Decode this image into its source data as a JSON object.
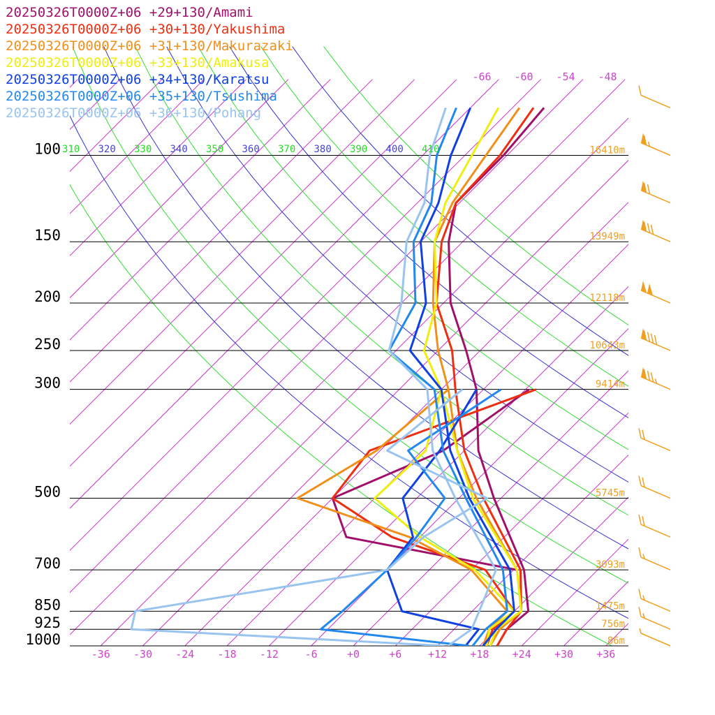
{
  "chart_data": {
    "type": "line",
    "chart_kind": "Skew-T log-P sounding diagram",
    "title": "",
    "legend_placement": "top-left",
    "grid": true,
    "x_axis": {
      "unit": "degC",
      "range": [
        -40,
        40
      ],
      "tick_labels": [
        "-36",
        "-30",
        "-24",
        "-18",
        "-12",
        "-6",
        "+0",
        "+6",
        "+12",
        "+18",
        "+24",
        "+30",
        "+36"
      ],
      "tick_values": [
        -36,
        -30,
        -24,
        -18,
        -12,
        -6,
        0,
        6,
        12,
        18,
        24,
        30,
        36
      ]
    },
    "y_axis": {
      "unit": "hPa",
      "scale": "log",
      "range": [
        1000,
        100
      ],
      "levels": [
        100,
        150,
        200,
        250,
        300,
        500,
        700,
        850,
        925,
        1000
      ],
      "level_labels": [
        "100",
        "150",
        "200",
        "250",
        "300",
        "500",
        "700",
        "850",
        "925",
        "1000"
      ]
    },
    "upper_temperature_labels": [
      "-66",
      "-60",
      "-54",
      "-48"
    ],
    "upper_temperature_values": [
      -66,
      -60,
      -54,
      -48
    ],
    "theta_labels": [
      "310",
      "320",
      "330",
      "340",
      "350",
      "360",
      "370",
      "380",
      "390",
      "400",
      "410"
    ],
    "theta_values": [
      310,
      320,
      330,
      340,
      350,
      360,
      370,
      380,
      390,
      400,
      410
    ],
    "theta_label_colors": [
      "#22dd22",
      "#4444dd",
      "#22dd22",
      "#4444dd",
      "#22dd22",
      "#4444dd",
      "#22dd22",
      "#4444dd",
      "#22dd22",
      "#4444dd",
      "#22dd22"
    ],
    "height_labels": [
      {
        "p": 100,
        "text": "16410m"
      },
      {
        "p": 150,
        "text": "13949m"
      },
      {
        "p": 200,
        "text": "12118m"
      },
      {
        "p": 250,
        "text": "10643m"
      },
      {
        "p": 300,
        "text": "9414m"
      },
      {
        "p": 500,
        "text": "5745m"
      },
      {
        "p": 700,
        "text": "3093m"
      },
      {
        "p": 850,
        "text": "1475m"
      },
      {
        "p": 925,
        "text": "756m"
      },
      {
        "p": 1000,
        "text": "86m"
      }
    ],
    "colors": {
      "isobar": "#000000",
      "isotherm": "#cc33cc",
      "theta_green": "#33dd33",
      "theta_blue": "#3333cc",
      "height_label": "#f0a020",
      "temp_label": "#cc44cc",
      "wind_barb": "#f0a020"
    },
    "series": [
      {
        "name": "20250326T0000Z+06 +29+130/Amami",
        "color": "#a0106a",
        "temperature": [
          [
            1000,
            20.5
          ],
          [
            925,
            19.5
          ],
          [
            850,
            20.0
          ],
          [
            700,
            13.5
          ],
          [
            500,
            -1.0
          ],
          [
            400,
            -10.0
          ],
          [
            300,
            -19.0
          ],
          [
            250,
            -26.0
          ],
          [
            200,
            -35.0
          ],
          [
            150,
            -44.0
          ],
          [
            125,
            -48.5
          ],
          [
            100,
            -48.5
          ],
          [
            80,
            -49.5
          ]
        ],
        "dewpoint": [
          [
            700,
            12.5
          ],
          [
            600,
            -16.5
          ],
          [
            500,
            -24.0
          ],
          [
            400,
            -15.0
          ],
          [
            300,
            -11.5
          ]
        ]
      },
      {
        "name": "20250326T0000Z+06 +30+130/Yakushima",
        "color": "#ee2e10",
        "temperature": [
          [
            1000,
            20.5
          ],
          [
            925,
            19.5
          ],
          [
            850,
            19.0
          ],
          [
            700,
            13.0
          ],
          [
            500,
            -2.5
          ],
          [
            400,
            -12.0
          ],
          [
            300,
            -22.0
          ],
          [
            250,
            -28.0
          ],
          [
            200,
            -37.0
          ],
          [
            150,
            -45.0
          ],
          [
            125,
            -48.5
          ],
          [
            100,
            -49.0
          ],
          [
            80,
            -51.0
          ]
        ],
        "dewpoint": [
          [
            1000,
            19.0
          ],
          [
            925,
            17.5
          ],
          [
            850,
            18.0
          ],
          [
            700,
            8.0
          ],
          [
            600,
            -10.0
          ],
          [
            500,
            -24.0
          ],
          [
            400,
            -25.5
          ],
          [
            300,
            -10.5
          ]
        ]
      },
      {
        "name": "20250326T0000Z+06 +31+130/Makurazaki",
        "color": "#f0901a",
        "temperature": [
          [
            1000,
            19.5
          ],
          [
            925,
            18.5
          ],
          [
            850,
            19.0
          ],
          [
            700,
            12.5
          ],
          [
            500,
            -3.5
          ],
          [
            400,
            -13.0
          ],
          [
            300,
            -23.0
          ],
          [
            250,
            -30.0
          ],
          [
            200,
            -37.5
          ],
          [
            150,
            -46.0
          ],
          [
            125,
            -49.0
          ],
          [
            100,
            -51.0
          ],
          [
            80,
            -53.0
          ]
        ],
        "dewpoint": [
          [
            1000,
            18.5
          ],
          [
            925,
            17.0
          ],
          [
            850,
            17.0
          ],
          [
            700,
            6.0
          ],
          [
            600,
            -7.5
          ],
          [
            500,
            -29.0
          ],
          [
            400,
            -24.5
          ],
          [
            300,
            -23.0
          ]
        ]
      },
      {
        "name": "20250326T0000Z+06 +33+130/Amakusa",
        "color": "#eeee10",
        "temperature": [
          [
            1000,
            19.5
          ],
          [
            925,
            18.0
          ],
          [
            850,
            19.0
          ],
          [
            700,
            12.5
          ],
          [
            500,
            -4.0
          ],
          [
            400,
            -13.0
          ],
          [
            300,
            -24.0
          ],
          [
            250,
            -32.0
          ],
          [
            200,
            -37.0
          ],
          [
            150,
            -46.0
          ],
          [
            125,
            -50.0
          ],
          [
            100,
            -53.0
          ],
          [
            80,
            -56.0
          ]
        ],
        "dewpoint": [
          [
            1000,
            19.0
          ],
          [
            925,
            17.0
          ],
          [
            850,
            18.0
          ],
          [
            700,
            6.5
          ],
          [
            600,
            -6.0
          ],
          [
            500,
            -18.0
          ],
          [
            400,
            -17.5
          ],
          [
            300,
            -24.0
          ]
        ]
      },
      {
        "name": "20250326T0000Z+06 +34+130/Karatsu",
        "color": "#1040e0",
        "temperature": [
          [
            1000,
            18.5
          ],
          [
            925,
            18.0
          ],
          [
            850,
            18.0
          ],
          [
            700,
            11.5
          ],
          [
            500,
            -4.5
          ],
          [
            400,
            -14.0
          ],
          [
            300,
            -24.0
          ],
          [
            250,
            -34.0
          ],
          [
            200,
            -38.5
          ],
          [
            150,
            -48.0
          ],
          [
            125,
            -51.0
          ],
          [
            100,
            -56.0
          ],
          [
            80,
            -60.0
          ]
        ],
        "dewpoint": [
          [
            1000,
            16.0
          ],
          [
            925,
            15.5
          ],
          [
            850,
            2.0
          ],
          [
            700,
            -6.0
          ],
          [
            600,
            -7.0
          ],
          [
            500,
            -14.0
          ],
          [
            400,
            -15.5
          ],
          [
            300,
            -19.0
          ]
        ]
      },
      {
        "name": "20250326T0000Z+06 +35+130/Tsushima",
        "color": "#2288ee",
        "temperature": [
          [
            1000,
            17.0
          ],
          [
            925,
            16.5
          ],
          [
            850,
            17.0
          ],
          [
            700,
            10.5
          ],
          [
            500,
            -5.0
          ],
          [
            400,
            -15.0
          ],
          [
            300,
            -25.0
          ],
          [
            250,
            -37.0
          ],
          [
            200,
            -40.0
          ],
          [
            150,
            -49.0
          ],
          [
            125,
            -52.0
          ],
          [
            100,
            -58.0
          ],
          [
            80,
            -62.0
          ]
        ],
        "dewpoint": [
          [
            1000,
            16.5
          ],
          [
            925,
            -7.0
          ],
          [
            850,
            -6.5
          ],
          [
            700,
            -6.0
          ],
          [
            600,
            -6.5
          ],
          [
            500,
            -8.0
          ],
          [
            400,
            -20.0
          ],
          [
            300,
            -15.5
          ]
        ]
      },
      {
        "name": "20250326T0000Z+06 +36+130/Pohang",
        "color": "#99c4f0",
        "temperature": [
          [
            1000,
            13.5
          ],
          [
            925,
            14.5
          ],
          [
            850,
            13.0
          ],
          [
            700,
            9.5
          ],
          [
            500,
            -6.5
          ],
          [
            400,
            -16.5
          ],
          [
            300,
            -26.0
          ],
          [
            250,
            -37.0
          ],
          [
            200,
            -42.0
          ],
          [
            150,
            -50.0
          ],
          [
            125,
            -53.0
          ],
          [
            100,
            -59.0
          ],
          [
            80,
            -63.5
          ]
        ],
        "dewpoint": [
          [
            1000,
            13.0
          ],
          [
            925,
            -34.0
          ],
          [
            850,
            -36.0
          ],
          [
            700,
            -6.0
          ],
          [
            600,
            -5.5
          ],
          [
            500,
            -2.0
          ],
          [
            400,
            -23.0
          ],
          [
            300,
            -21.0
          ]
        ]
      }
    ],
    "wind_barbs": [
      {
        "p": 80,
        "speed_kt": 10
      },
      {
        "p": 100,
        "speed_kt": 65
      },
      {
        "p": 125,
        "speed_kt": 70
      },
      {
        "p": 150,
        "speed_kt": 80
      },
      {
        "p": 200,
        "speed_kt": 100
      },
      {
        "p": 250,
        "speed_kt": 90
      },
      {
        "p": 300,
        "speed_kt": 85
      },
      {
        "p": 400,
        "speed_kt": 20
      },
      {
        "p": 500,
        "speed_kt": 20
      },
      {
        "p": 600,
        "speed_kt": 20
      },
      {
        "p": 700,
        "speed_kt": 15
      },
      {
        "p": 850,
        "speed_kt": 15
      },
      {
        "p": 925,
        "speed_kt": 15
      },
      {
        "p": 1000,
        "speed_kt": 5
      }
    ]
  }
}
